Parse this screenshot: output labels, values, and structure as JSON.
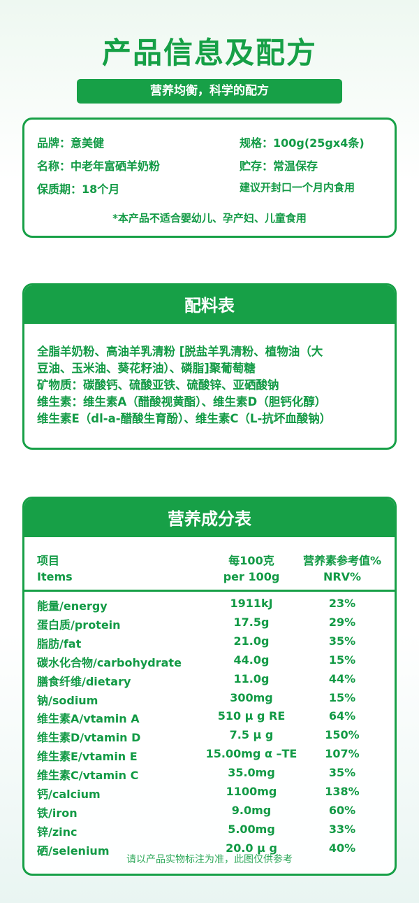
{
  "title": "产品信息及配方",
  "subtitle": "营养均衡，科学的配方",
  "info": {
    "brand": "品牌：意美健",
    "spec": "规格：100g(25gx4条)",
    "name": "名称：中老年富硒羊奶粉",
    "storage": "贮存：常温保存",
    "shelf_life": "保质期：18个月",
    "advice": "建议开封口一个月内食用",
    "note": "*本产品不适合婴幼儿、孕产妇、儿童食用"
  },
  "ingredients": {
    "heading": "配料表",
    "lines": [
      "全脂羊奶粉、高油羊乳清粉 [脱盐羊乳清粉、植物油（大",
      "豆油、玉米油、葵花籽油）、磷脂]聚葡萄糖",
      "矿物质：碳酸钙、硫酸亚铁、硫酸锌、亚硒酸钠",
      "维生素：维生素A（醋酸视黄酯）、维生素D（胆钙化醇）",
      "维生素E（dl-a-醋酸生育酚）、维生素C（L-抗坏血酸钠）"
    ]
  },
  "nutrition": {
    "heading": "营养成分表",
    "headers": [
      {
        "item": "项目",
        "per": "每100克",
        "nrv": "营养素参考值%"
      },
      {
        "item": "Items",
        "per": "per 100g",
        "nrv": "NRV%"
      }
    ],
    "rows": [
      {
        "item": "能量/energy",
        "per": "1911kJ",
        "nrv": "23%"
      },
      {
        "item": "蛋白质/protein",
        "per": "17.5g",
        "nrv": "29%"
      },
      {
        "item": "脂肪/fat",
        "per": "21.0g",
        "nrv": "35%"
      },
      {
        "item": "碳水化合物/carbohydrate",
        "per": "44.0g",
        "nrv": "15%"
      },
      {
        "item": "膳食纤维/dietary",
        "per": "11.0g",
        "nrv": "44%"
      },
      {
        "item": "钠/sodium",
        "per": "300mg",
        "nrv": "15%"
      },
      {
        "item": "维生素A/vtamin A",
        "per": "510 μ g RE",
        "nrv": "64%"
      },
      {
        "item": "维生素D/vtamin D",
        "per": "7.5 μ g",
        "nrv": "150%"
      },
      {
        "item": "维生素E/vtamin E",
        "per": "15.00mg α –TE",
        "nrv": "107%"
      },
      {
        "item": "维生素C/vtamin C",
        "per": "35.0mg",
        "nrv": "35%"
      },
      {
        "item": "钙/calcium",
        "per": "1100mg",
        "nrv": "138%"
      },
      {
        "item": "铁/iron",
        "per": "9.0mg",
        "nrv": "60%"
      },
      {
        "item": "锌/zinc",
        "per": "5.00mg",
        "nrv": "33%"
      },
      {
        "item": "硒/selenium",
        "per": "20.0 μ g",
        "nrv": "40%"
      }
    ],
    "disclaimer": "请以产品实物标注为准，此图仅供参考"
  },
  "colors": {
    "brand_green": "#17a047",
    "text_green": "#129a45"
  }
}
